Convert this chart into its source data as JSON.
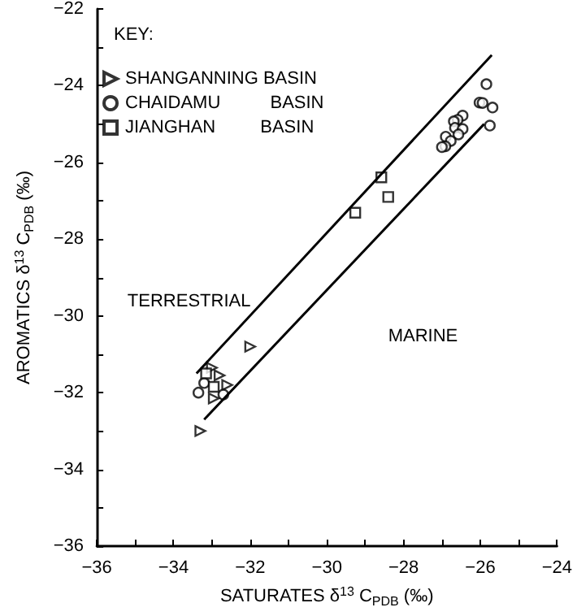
{
  "chart_data": {
    "type": "scatter",
    "xlabel": "SATURATES δ$^{13}$ C$_{PDB}$ (‰)",
    "ylabel": "AROMATICS δ$^{13}$ C$_{PDB}$ (‰)",
    "legend_title": "KEY:",
    "legend": "top left",
    "grid": false,
    "xlim": [
      -36,
      -24
    ],
    "ylim": [
      -36,
      -22
    ],
    "xticks": [
      -36,
      {
        "value": -35,
        "label": null
      },
      -34,
      {
        "value": -33,
        "label": null
      },
      -32,
      {
        "value": -31,
        "label": null
      },
      -30,
      {
        "value": -29,
        "label": null
      },
      -28,
      {
        "value": -27,
        "label": null
      },
      -26,
      {
        "value": -25,
        "label": null
      },
      -24
    ],
    "yticks": [
      -36,
      {
        "value": -35,
        "label": null
      },
      -34,
      {
        "value": -33,
        "label": null
      },
      -32,
      {
        "value": -31,
        "label": null
      },
      -30,
      {
        "value": -29,
        "label": null
      },
      -28,
      {
        "value": -27,
        "label": null
      },
      -26,
      {
        "value": -25,
        "label": null
      },
      -24,
      {
        "value": -23,
        "label": null
      },
      -22
    ],
    "annotations": [
      "TERRESTRIAL",
      "MARINE"
    ],
    "series": [
      {
        "name": "SHANGANNING BASIN",
        "color": "#000000",
        "marker": "triangle",
        "x": [
          -33.0,
          -32.8,
          -32.6,
          -32.95,
          -33.3,
          -32.0
        ],
        "values": [
          -31.35,
          -31.55,
          -31.8,
          -32.15,
          -33.0,
          -30.8
        ]
      },
      {
        "name": "CHAIDAMU          BASIN",
        "color": "#000000",
        "marker": "circle",
        "x": [
          -33.35,
          -33.2,
          -32.7,
          -25.84,
          -26.02,
          -25.94,
          -25.68,
          -25.75,
          -26.46,
          -26.59,
          -26.69,
          -26.66,
          -26.46,
          -26.57,
          -26.9,
          -26.77,
          -26.91,
          -27.0
        ],
        "values": [
          -32.0,
          -31.75,
          -32.05,
          -23.96,
          -24.44,
          -24.45,
          -24.57,
          -25.04,
          -24.78,
          -24.89,
          -24.93,
          -25.1,
          -25.13,
          -25.27,
          -25.33,
          -25.44,
          -25.58,
          -25.6
        ]
      },
      {
        "name": "JIANGHAN         BASIN",
        "color": "#000000",
        "marker": "square",
        "x": [
          -33.15,
          -32.95,
          -28.58,
          -28.4,
          -29.26
        ],
        "values": [
          -31.5,
          -31.85,
          -26.39,
          -26.9,
          -27.31
        ]
      },
      {
        "type": "line",
        "color": "#000000",
        "marker": "none",
        "line_style": "solid",
        "x": [
          -33.4,
          -25.7
        ],
        "values": [
          -31.5,
          -23.2
        ]
      },
      {
        "type": "line",
        "color": "#000000",
        "marker": "none",
        "line_style": "solid",
        "x": [
          -33.2,
          -25.9
        ],
        "values": [
          -32.7,
          -25.0
        ]
      }
    ]
  }
}
